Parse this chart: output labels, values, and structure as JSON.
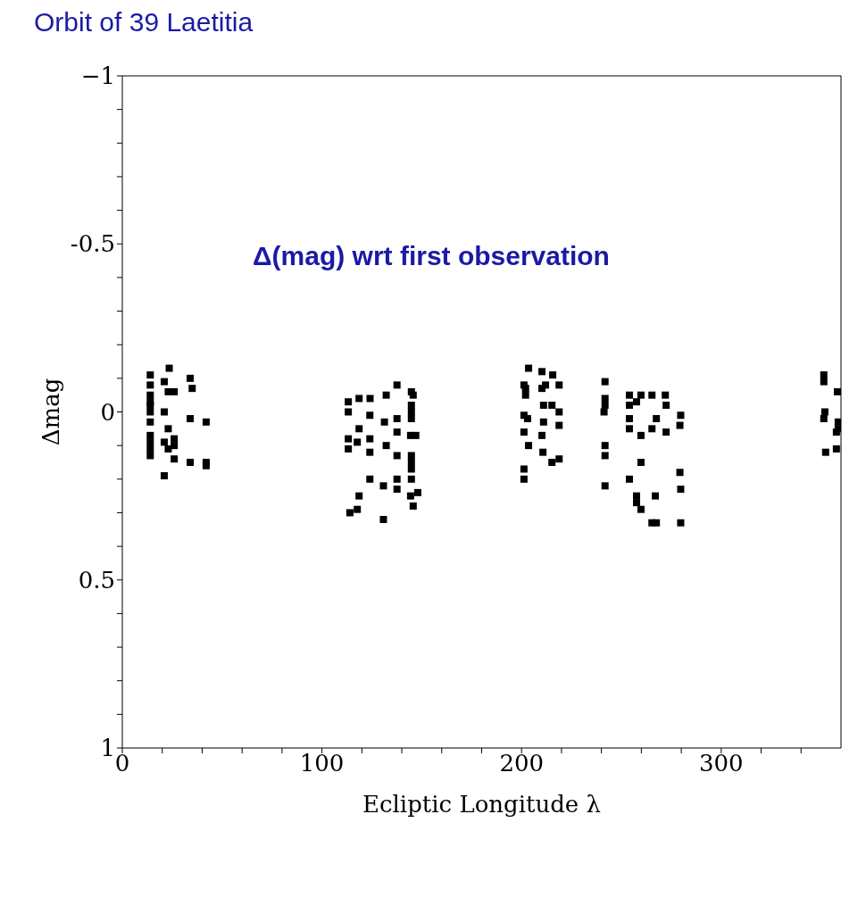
{
  "chart_data": {
    "type": "scatter",
    "title": "Orbit of 39 Laetitia",
    "xlabel": "Ecliptic Longitude λ",
    "ylabel": "Δmag",
    "annotations": [
      "Δ(mag) wrt first observation"
    ],
    "marker": "square",
    "xlim": [
      0,
      360
    ],
    "ylim": [
      1,
      -1
    ],
    "xticks": [
      0,
      {
        "value": 20,
        "label": null
      },
      {
        "value": 40,
        "label": null
      },
      {
        "value": 60,
        "label": null
      },
      {
        "value": 80,
        "label": null
      },
      100,
      {
        "value": 120,
        "label": null
      },
      {
        "value": 140,
        "label": null
      },
      {
        "value": 160,
        "label": null
      },
      {
        "value": 180,
        "label": null
      },
      200,
      {
        "value": 220,
        "label": null
      },
      {
        "value": 240,
        "label": null
      },
      {
        "value": 260,
        "label": null
      },
      {
        "value": 280,
        "label": null
      },
      300,
      {
        "value": 320,
        "label": null
      },
      {
        "value": 340,
        "label": null
      }
    ],
    "yticks": [
      {
        "value": -1,
        "label": "−1"
      },
      {
        "value": -0.9,
        "label": null
      },
      {
        "value": -0.8,
        "label": null
      },
      {
        "value": -0.7,
        "label": null
      },
      {
        "value": -0.6,
        "label": null
      },
      {
        "value": -0.5,
        "label": "-0.5"
      },
      {
        "value": -0.4,
        "label": null
      },
      {
        "value": -0.3,
        "label": null
      },
      {
        "value": -0.2,
        "label": null
      },
      {
        "value": -0.1,
        "label": null
      },
      0,
      {
        "value": 0.1,
        "label": null
      },
      {
        "value": 0.2,
        "label": null
      },
      {
        "value": 0.3,
        "label": null
      },
      {
        "value": 0.4,
        "label": null
      },
      0.5,
      {
        "value": 0.6,
        "label": null
      },
      {
        "value": 0.7,
        "label": null
      },
      {
        "value": 0.8,
        "label": null
      },
      {
        "value": 0.9,
        "label": null
      },
      1
    ],
    "series": [
      {
        "color": "#000000",
        "x": [
          23.5,
          14,
          21,
          34,
          14,
          23,
          26,
          35,
          14,
          14,
          14,
          21,
          14,
          34,
          42,
          14,
          23,
          14,
          26,
          21,
          14,
          26,
          14,
          23,
          14,
          26,
          34,
          42,
          42,
          21,
          137.6,
          144.8,
          145.7,
          113.2,
          118.6,
          124.1,
          132.2,
          113.2,
          144.8,
          144.8,
          124,
          137.6,
          144.8,
          131.3,
          118.6,
          137.6,
          144.4,
          147,
          113.2,
          124,
          117.7,
          132.2,
          113.2,
          124,
          137.6,
          144.8,
          144.8,
          144.8,
          124,
          137.6,
          144.8,
          130.8,
          137.6,
          148,
          144.4,
          118.6,
          145.7,
          117.7,
          114,
          130.8,
          203.5,
          210.2,
          215.6,
          201.2,
          202,
          212,
          218.8,
          202,
          210.2,
          211,
          215.2,
          218.8,
          201.2,
          203,
          211,
          218.8,
          201.2,
          210.2,
          203.5,
          210.7,
          215.2,
          218.8,
          201.2,
          201.2,
          241.8,
          241.8,
          241.8,
          241.3,
          254,
          259.8,
          265.3,
          272,
          272.4,
          254,
          257.6,
          279.7,
          254,
          267.5,
          254,
          265.3,
          272.4,
          279.3,
          259.8,
          241.8,
          241.8,
          259.8,
          279.3,
          254,
          241.8,
          279.7,
          257.6,
          267,
          257.6,
          259.8,
          265.3,
          267.5,
          279.7,
          351.4,
          351.4,
          358.2,
          351.9,
          351.4,
          358.6,
          358.6,
          357.7,
          352.3,
          357.7
        ],
        "values": [
          -0.13,
          -0.11,
          -0.09,
          -0.1,
          -0.08,
          -0.06,
          -0.06,
          -0.07,
          -0.05,
          -0.03,
          -0.02,
          0,
          0,
          0.02,
          0.03,
          0.03,
          0.05,
          0.07,
          0.08,
          0.09,
          0.09,
          0.1,
          0.11,
          0.11,
          0.13,
          0.14,
          0.15,
          0.15,
          0.16,
          0.19,
          -0.08,
          -0.06,
          -0.05,
          -0.03,
          -0.04,
          -0.04,
          -0.05,
          0,
          -0.02,
          0,
          0.01,
          0.02,
          0.02,
          0.03,
          0.05,
          0.06,
          0.07,
          0.07,
          0.08,
          0.08,
          0.09,
          0.1,
          0.11,
          0.12,
          0.13,
          0.13,
          0.15,
          0.17,
          0.2,
          0.2,
          0.2,
          0.22,
          0.23,
          0.24,
          0.25,
          0.25,
          0.28,
          0.29,
          0.3,
          0.32,
          -0.13,
          -0.12,
          -0.11,
          -0.08,
          -0.07,
          -0.08,
          -0.08,
          -0.05,
          -0.07,
          -0.02,
          -0.02,
          0,
          0.01,
          0.02,
          0.03,
          0.04,
          0.06,
          0.07,
          0.1,
          0.12,
          0.15,
          0.14,
          0.17,
          0.2,
          -0.09,
          -0.04,
          -0.02,
          0,
          -0.05,
          -0.05,
          -0.05,
          -0.05,
          -0.02,
          -0.02,
          -0.03,
          0.01,
          0.02,
          0.02,
          0.05,
          0.05,
          0.06,
          0.04,
          0.07,
          0.1,
          0.13,
          0.15,
          0.18,
          0.2,
          0.22,
          0.23,
          0.25,
          0.25,
          0.27,
          0.29,
          0.33,
          0.33,
          0.33,
          -0.11,
          -0.09,
          -0.06,
          0,
          0.02,
          0.03,
          0.05,
          0.06,
          0.12,
          0.11
        ]
      }
    ]
  }
}
